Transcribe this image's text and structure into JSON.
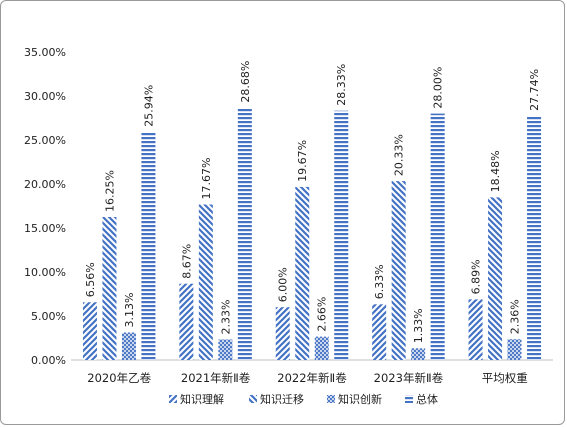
{
  "chart_data": {
    "type": "bar",
    "categories": [
      "2020年乙卷",
      "2021年新Ⅱ卷",
      "2022年新Ⅱ卷",
      "2023年新Ⅱ卷",
      "平均权重"
    ],
    "series": [
      {
        "name": "知识理解",
        "values": [
          6.56,
          8.67,
          6.0,
          6.33,
          6.89
        ],
        "labels": [
          "6.56%",
          "8.67%",
          "6.00%",
          "6.33%",
          "6.89%"
        ],
        "pattern": "diagonal"
      },
      {
        "name": "知识迁移",
        "values": [
          16.25,
          17.67,
          19.67,
          20.33,
          18.48
        ],
        "labels": [
          "16.25%",
          "17.67%",
          "19.67%",
          "20.33%",
          "18.48%"
        ],
        "pattern": "backslash"
      },
      {
        "name": "知识创新",
        "values": [
          3.13,
          2.33,
          2.66,
          1.33,
          2.36
        ],
        "labels": [
          "3.13%",
          "2.33%",
          "2.66%",
          "1.33%",
          "2.36%"
        ],
        "pattern": "crosshatch"
      },
      {
        "name": "总体",
        "values": [
          25.94,
          28.68,
          28.33,
          28.0,
          27.74
        ],
        "labels": [
          "25.94%",
          "28.68%",
          "28.33%",
          "28.00%",
          "27.74%"
        ],
        "pattern": "horizontal"
      }
    ],
    "yticks": [
      "0.00%",
      "5.00%",
      "10.00%",
      "15.00%",
      "20.00%",
      "25.00%",
      "30.00%",
      "35.00%"
    ],
    "ylim": [
      0,
      35
    ],
    "ytick_step": 5,
    "grid": false,
    "legend": "bottom",
    "bar_color": "#4472c4"
  }
}
